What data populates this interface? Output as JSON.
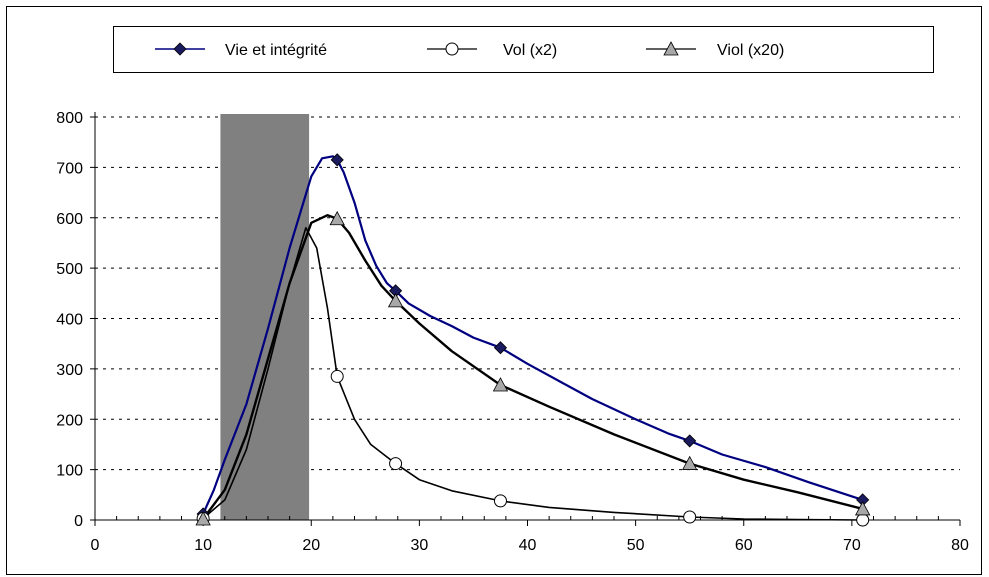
{
  "chart_data": {
    "type": "line",
    "title": "",
    "xlabel": "",
    "ylabel": "",
    "xlim": [
      0,
      80
    ],
    "ylim": [
      0,
      800
    ],
    "x_ticks": [
      "0",
      "10",
      "20",
      "30",
      "40",
      "50",
      "60",
      "70",
      "80"
    ],
    "y_ticks": [
      "0",
      "100",
      "200",
      "300",
      "400",
      "500",
      "600",
      "700",
      "800"
    ],
    "grid": "horizontal dashed",
    "legend_position": "top",
    "shaded_band": {
      "x_start": 11.6,
      "x_end": 19.8,
      "color": "#808080"
    },
    "series": [
      {
        "name": "Vie et intégrité",
        "color": "#000080",
        "marker": "diamond",
        "marker_fill": "#1a1a5e",
        "markers": [
          [
            10,
            12
          ],
          [
            22.4,
            715
          ],
          [
            27.8,
            455
          ],
          [
            37.5,
            342
          ],
          [
            55,
            157
          ],
          [
            71,
            40
          ]
        ],
        "curve": [
          [
            10,
            12
          ],
          [
            11,
            60
          ],
          [
            12,
            120
          ],
          [
            14,
            230
          ],
          [
            16,
            380
          ],
          [
            18,
            540
          ],
          [
            20,
            682
          ],
          [
            21,
            718
          ],
          [
            22,
            722
          ],
          [
            22.4,
            715
          ],
          [
            23,
            690
          ],
          [
            24,
            630
          ],
          [
            25,
            555
          ],
          [
            26,
            505
          ],
          [
            27,
            470
          ],
          [
            27.8,
            455
          ],
          [
            29,
            430
          ],
          [
            31,
            405
          ],
          [
            33,
            385
          ],
          [
            35,
            362
          ],
          [
            37.5,
            342
          ],
          [
            40,
            310
          ],
          [
            43,
            275
          ],
          [
            46,
            240
          ],
          [
            50,
            200
          ],
          [
            53,
            172
          ],
          [
            55,
            157
          ],
          [
            58,
            130
          ],
          [
            62,
            105
          ],
          [
            66,
            75
          ],
          [
            71,
            40
          ]
        ]
      },
      {
        "name": "Vol (x2)",
        "color": "#000000",
        "marker": "circle",
        "marker_fill": "#ffffff",
        "markers": [
          [
            10,
            3
          ],
          [
            22.4,
            285
          ],
          [
            27.8,
            112
          ],
          [
            37.5,
            38
          ],
          [
            55,
            6
          ],
          [
            71,
            0
          ]
        ],
        "curve": [
          [
            10,
            3
          ],
          [
            12,
            40
          ],
          [
            14,
            140
          ],
          [
            16,
            300
          ],
          [
            18,
            470
          ],
          [
            19.5,
            580
          ],
          [
            20.5,
            540
          ],
          [
            21.5,
            420
          ],
          [
            22.4,
            285
          ],
          [
            24,
            200
          ],
          [
            25.5,
            150
          ],
          [
            27.8,
            112
          ],
          [
            30,
            80
          ],
          [
            33,
            58
          ],
          [
            37.5,
            38
          ],
          [
            42,
            25
          ],
          [
            48,
            15
          ],
          [
            55,
            6
          ],
          [
            60,
            2
          ],
          [
            65,
            1
          ],
          [
            71,
            0
          ]
        ]
      },
      {
        "name": "Viol (x20)",
        "color": "#000000",
        "marker": "triangle",
        "marker_fill": "#a8a8a8",
        "markers": [
          [
            10,
            2
          ],
          [
            22.4,
            598
          ],
          [
            27.8,
            435
          ],
          [
            37.5,
            268
          ],
          [
            55,
            112
          ],
          [
            71,
            22
          ]
        ],
        "curve": [
          [
            10,
            2
          ],
          [
            12,
            60
          ],
          [
            14,
            170
          ],
          [
            16,
            320
          ],
          [
            18,
            470
          ],
          [
            20,
            590
          ],
          [
            21.5,
            605
          ],
          [
            22.4,
            598
          ],
          [
            23.5,
            570
          ],
          [
            25,
            515
          ],
          [
            26.5,
            465
          ],
          [
            27.8,
            435
          ],
          [
            30,
            390
          ],
          [
            33,
            335
          ],
          [
            37.5,
            268
          ],
          [
            42,
            225
          ],
          [
            48,
            170
          ],
          [
            55,
            112
          ],
          [
            60,
            80
          ],
          [
            65,
            55
          ],
          [
            71,
            22
          ]
        ]
      }
    ]
  }
}
